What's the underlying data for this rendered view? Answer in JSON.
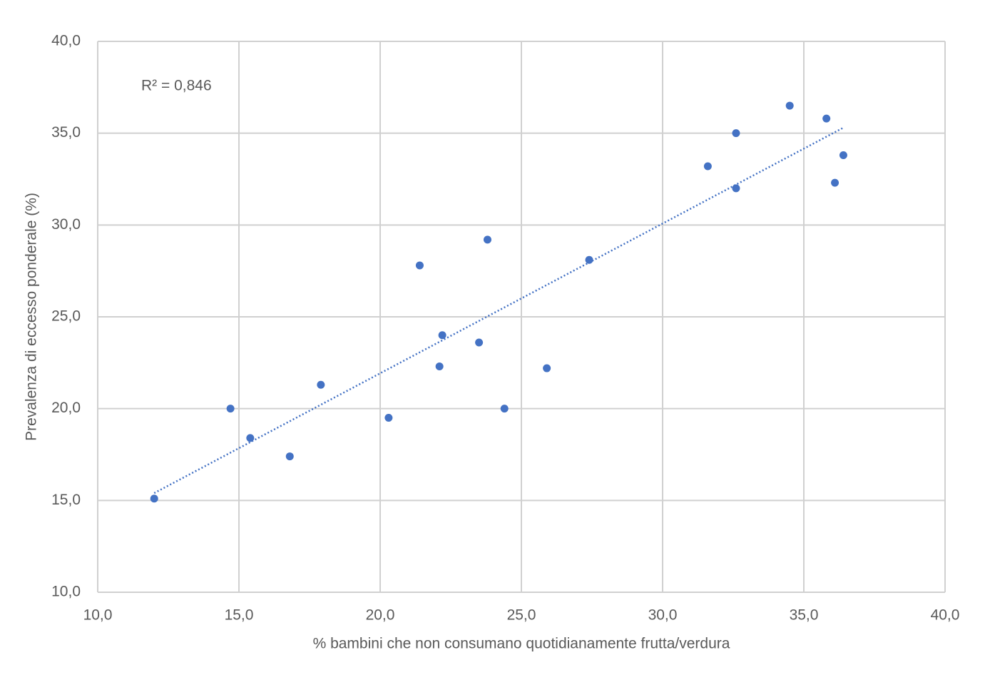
{
  "chart_data": {
    "type": "scatter",
    "x_label": "% bambini che non consumano quotidianamente frutta/verdura",
    "y_label": "Prevalenza di eccesso ponderale (%)",
    "annotation": "R² = 0,846",
    "color": "#4472c4",
    "grid": true,
    "x": [
      12.0,
      14.7,
      15.4,
      16.8,
      17.9,
      20.3,
      21.4,
      22.1,
      22.2,
      23.5,
      23.8,
      24.4,
      25.9,
      27.4,
      31.6,
      32.6,
      32.6,
      34.5,
      35.8,
      36.1,
      36.4
    ],
    "values": [
      15.1,
      20.0,
      18.4,
      17.4,
      21.3,
      19.5,
      27.8,
      22.3,
      24.0,
      23.6,
      29.2,
      20.0,
      22.2,
      28.1,
      33.2,
      35.0,
      32.0,
      36.5,
      35.8,
      32.3,
      33.8
    ],
    "trendline": {
      "x": [
        12.0,
        36.4
      ],
      "y": [
        15.4,
        35.3
      ],
      "style": "dotted"
    },
    "xlim": [
      10,
      40
    ],
    "ylim": [
      10,
      40
    ],
    "xticks": [
      {
        "value": 10,
        "label": "10,0"
      },
      {
        "value": 15,
        "label": "15,0"
      },
      {
        "value": 20,
        "label": "20,0"
      },
      {
        "value": 25,
        "label": "25,0"
      },
      {
        "value": 30,
        "label": "30,0"
      },
      {
        "value": 35,
        "label": "35,0"
      },
      {
        "value": 40,
        "label": "40,0"
      }
    ],
    "yticks": [
      {
        "value": 10,
        "label": "10,0"
      },
      {
        "value": 15,
        "label": "15,0"
      },
      {
        "value": 20,
        "label": "20,0"
      },
      {
        "value": 25,
        "label": "25,0"
      },
      {
        "value": 30,
        "label": "30,0"
      },
      {
        "value": 35,
        "label": "35,0"
      },
      {
        "value": 40,
        "label": "40,0"
      }
    ]
  }
}
